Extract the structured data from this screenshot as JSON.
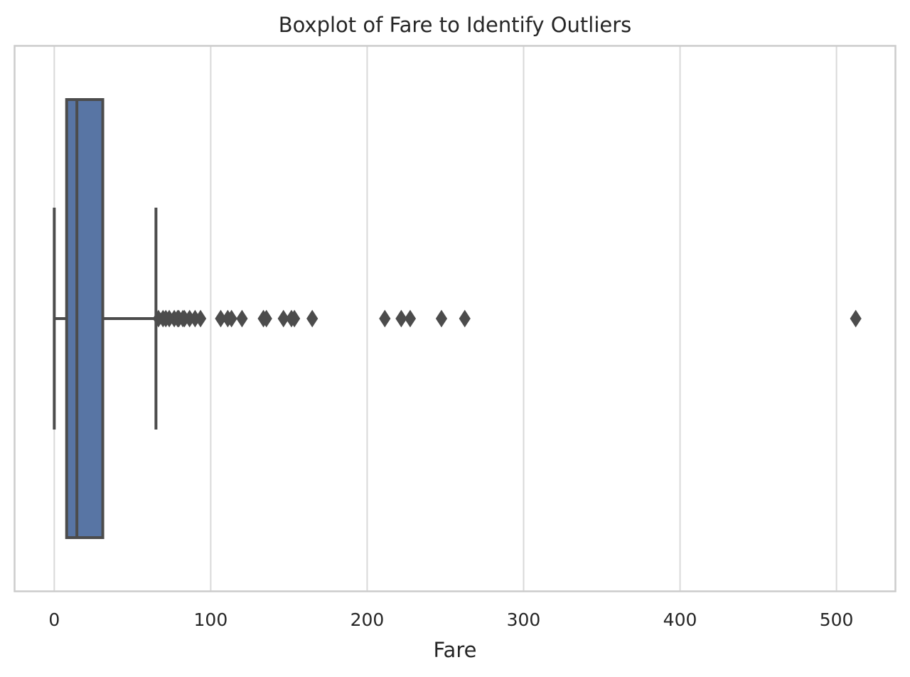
{
  "colors": {
    "box_fill": "#5875a4",
    "line": "#4c4c4c",
    "grid": "#d9d9d9",
    "frame": "#cccccc",
    "text": "#262626"
  },
  "chart_data": {
    "type": "boxplot",
    "orientation": "horizontal",
    "title": "Boxplot of Fare to Identify Outliers",
    "xlabel": "Fare",
    "ylabel": "",
    "xlim": [
      -25.6,
      537.9
    ],
    "xticks": [
      0,
      100,
      200,
      300,
      400,
      500
    ],
    "xtick_labels": [
      "0",
      "100",
      "200",
      "300",
      "400",
      "500"
    ],
    "grid": "vertical gridlines",
    "legend": "none",
    "box": {
      "whisker_low": 0,
      "q1": 7.9,
      "median": 14.45,
      "q3": 31.0,
      "whisker_high": 65.0
    },
    "outliers": [
      66.6,
      69.5,
      71.3,
      73.5,
      76.7,
      78.9,
      79.6,
      82.2,
      83.2,
      86.5,
      90.0,
      93.5,
      106.4,
      110.9,
      113.3,
      120.0,
      133.7,
      135.6,
      146.5,
      151.6,
      153.5,
      164.9,
      211.3,
      221.8,
      227.5,
      247.5,
      262.4,
      512.3
    ]
  }
}
